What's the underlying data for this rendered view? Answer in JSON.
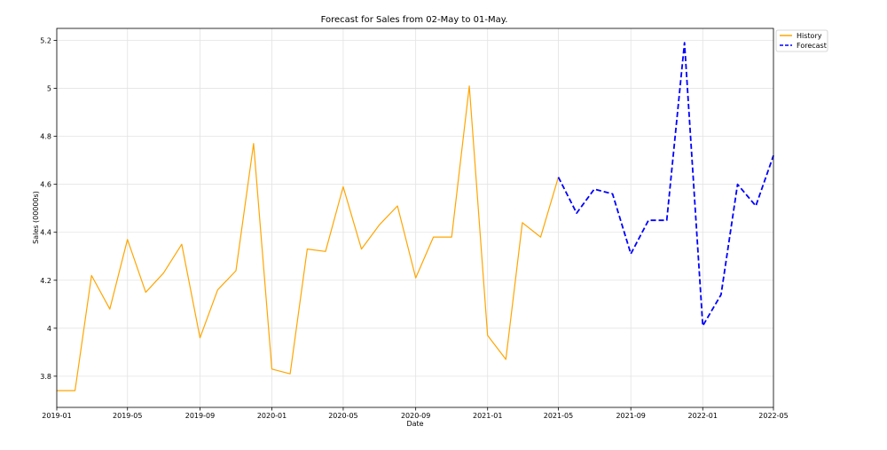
{
  "chart_data": {
    "type": "line",
    "title": "Forecast for Sales from 02-May to 01-May.",
    "xlabel": "Date",
    "ylabel": "Sales (00000s)",
    "xlim": [
      "2019-01-01",
      "2022-05-01"
    ],
    "ylim": [
      3.67,
      5.25
    ],
    "grid": true,
    "legend_position": "outside-top-right",
    "x_ticks": [
      "2019-01",
      "2019-05",
      "2019-09",
      "2020-01",
      "2020-05",
      "2020-09",
      "2021-01",
      "2021-05",
      "2021-09",
      "2022-01",
      "2022-05"
    ],
    "y_ticks": [
      "3.8",
      "4",
      "4.2",
      "4.4",
      "4.6",
      "4.8",
      "5",
      "5.2"
    ],
    "series": [
      {
        "name": "History",
        "color": "#FFA500",
        "style": "solid",
        "x": [
          "2019-01-01",
          "2019-02-01",
          "2019-03-01",
          "2019-04-01",
          "2019-05-01",
          "2019-06-01",
          "2019-07-01",
          "2019-08-01",
          "2019-09-01",
          "2019-10-01",
          "2019-11-01",
          "2019-12-01",
          "2020-01-01",
          "2020-02-01",
          "2020-03-01",
          "2020-04-01",
          "2020-05-01",
          "2020-06-01",
          "2020-07-01",
          "2020-08-01",
          "2020-09-01",
          "2020-10-01",
          "2020-11-01",
          "2020-12-01",
          "2021-01-01",
          "2021-02-01",
          "2021-03-01",
          "2021-04-01",
          "2021-05-01"
        ],
        "values": [
          3.74,
          3.74,
          4.22,
          4.08,
          4.37,
          4.15,
          4.23,
          4.35,
          3.96,
          4.16,
          4.24,
          4.77,
          3.83,
          3.81,
          4.33,
          4.32,
          4.59,
          4.33,
          4.43,
          4.51,
          4.21,
          4.38,
          4.38,
          5.01,
          3.97,
          3.87,
          4.44,
          4.38,
          4.63
        ]
      },
      {
        "name": "Forecast",
        "color": "#0000FF",
        "style": "dashed",
        "x": [
          "2021-05-01",
          "2021-06-01",
          "2021-07-01",
          "2021-08-01",
          "2021-09-01",
          "2021-10-01",
          "2021-11-01",
          "2021-12-01",
          "2022-01-01",
          "2022-02-01",
          "2022-03-01",
          "2022-04-01",
          "2022-05-01"
        ],
        "values": [
          4.63,
          4.48,
          4.58,
          4.56,
          4.31,
          4.45,
          4.45,
          5.19,
          4.01,
          4.14,
          4.6,
          4.51,
          4.72
        ]
      }
    ]
  }
}
